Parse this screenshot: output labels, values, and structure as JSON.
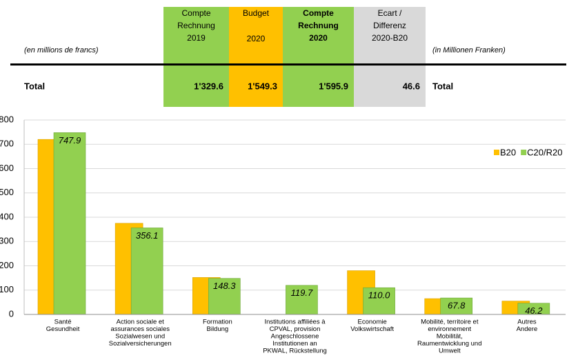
{
  "table": {
    "note_left": "(en millions de francs)",
    "note_right": "(in Millionen Franken)",
    "headers": [
      [
        "Compte",
        "Rechnung",
        "2019"
      ],
      [
        "Budget",
        "2020"
      ],
      [
        "Compte",
        "Rechnung",
        "2020"
      ],
      [
        "Ecart /",
        "Differenz",
        "2020-B20"
      ]
    ],
    "total_row": [
      "Total",
      "1'329.6",
      "1'549.3",
      "1'595.9",
      "46.6",
      "Total"
    ]
  },
  "chart_data": {
    "type": "bar",
    "categories": [
      [
        "Santé",
        "Gesundheit"
      ],
      [
        "Action sociale et",
        "assurances sociales",
        "Sozialwesen und",
        "Sozialversicherungen"
      ],
      [
        "Formation",
        "Bildung"
      ],
      [
        "Institutions affiliées à",
        "CPVAL, provision",
        "Angeschlossene",
        "Institutionen an",
        "PKWAL, Rückstellung"
      ],
      [
        "Economie",
        "Volkswirtschaft"
      ],
      [
        "Mobilité, territoire et",
        "environnement",
        "Mobilität,",
        "Raumentwicklung und",
        "Umwelt"
      ],
      [
        "Autres",
        "Andere"
      ]
    ],
    "series": [
      {
        "name": "B20",
        "color": "#ffc000",
        "values": [
          720,
          375,
          152,
          0,
          180,
          65,
          55
        ]
      },
      {
        "name": "C20/R20",
        "color": "#92d050",
        "values": [
          747.9,
          356.1,
          148.3,
          119.7,
          110.0,
          67.8,
          46.2
        ],
        "value_labels": [
          "747.9",
          "356.1",
          "148.3",
          "119.7",
          "110.0",
          "67.8",
          "46.2"
        ]
      }
    ],
    "ylim": [
      0,
      800
    ],
    "yticks": [
      0,
      100,
      200,
      300,
      400,
      500,
      600,
      700,
      800
    ],
    "grid": true,
    "legend": "top-right"
  }
}
